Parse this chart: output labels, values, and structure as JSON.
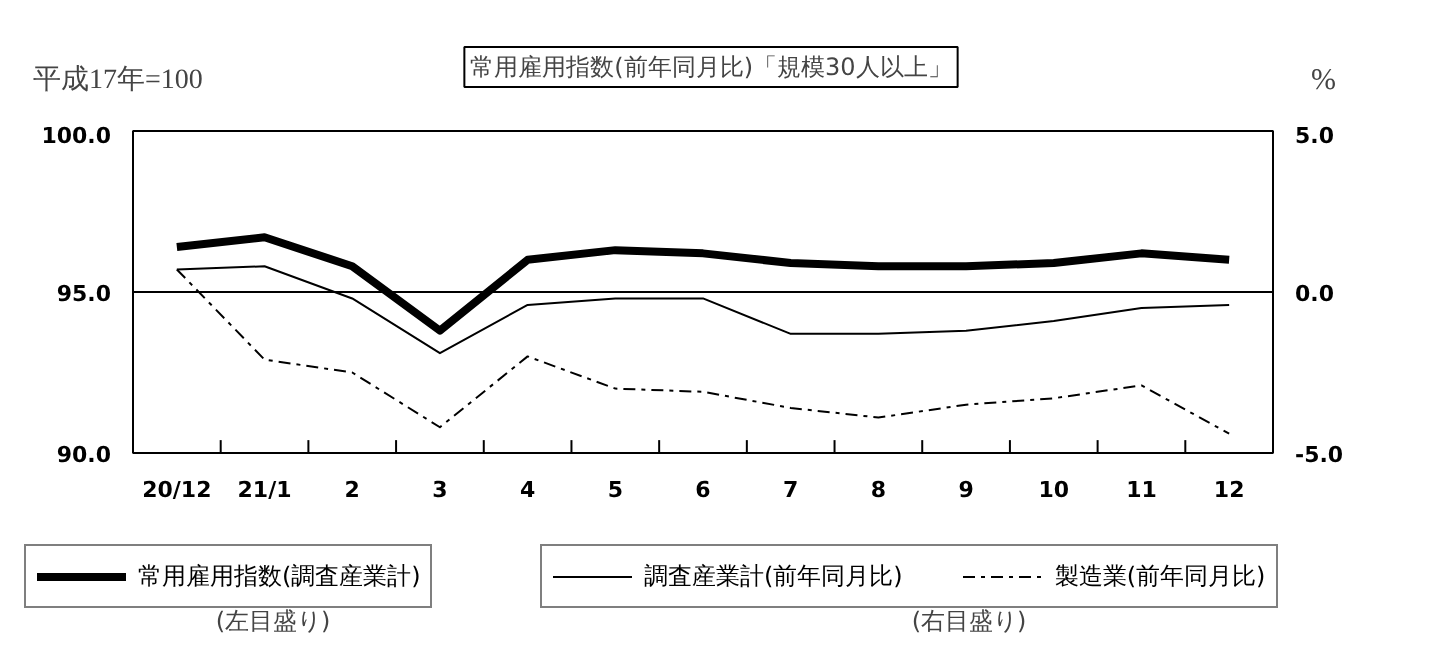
{
  "chart_data": {
    "type": "line",
    "title": "常用雇用指数(前年同月比)「規模30人以上」",
    "ylabel": "平成17年=100",
    "y2label": "%",
    "categories": [
      "20/12",
      "21/1",
      "2",
      "3",
      "4",
      "5",
      "6",
      "7",
      "8",
      "9",
      "10",
      "11",
      "12"
    ],
    "series": [
      {
        "name": "常用雇用指数(調査産業計)",
        "color": "#000000",
        "line_style": "solid",
        "values": [
          96.4,
          96.7,
          95.8,
          93.8,
          96.0,
          96.3,
          96.2,
          95.9,
          95.8,
          95.8,
          95.9,
          96.2,
          96.0
        ]
      },
      {
        "name": "調査産業計(前年同月比)",
        "color": "#000000",
        "line_style": "solid",
        "axis": "y2",
        "values": [
          0.7,
          0.8,
          -0.2,
          -1.9,
          -0.4,
          -0.2,
          -0.2,
          -1.3,
          -1.3,
          -1.2,
          -0.9,
          -0.5,
          -0.4
        ]
      },
      {
        "name": "製造業(前年同月比)",
        "color": "#000000",
        "line_style": "dashed",
        "axis": "y2",
        "values": [
          0.7,
          -2.1,
          -2.5,
          -4.2,
          -2.0,
          -3.0,
          -3.1,
          -3.6,
          -3.9,
          -3.5,
          -3.3,
          -2.9,
          -4.4
        ]
      }
    ],
    "ylim": [
      90,
      100
    ],
    "yticks": [
      {
        "value": 90,
        "label": "90.0"
      },
      {
        "value": 95,
        "label": "95.0"
      },
      {
        "value": 100,
        "label": "100.0"
      }
    ],
    "y2lim": [
      -5,
      5
    ],
    "y2ticks": [
      {
        "value": -5,
        "label": "-5.0"
      },
      {
        "value": 0,
        "label": "0.0"
      },
      {
        "value": 5,
        "label": "5.0"
      }
    ],
    "ref_lines": [
      {
        "axis": "y2",
        "value": 0,
        "color": "#000000"
      }
    ],
    "annotations": [
      "(左目盛り)",
      "(右目盛り)"
    ],
    "legend": "bottom",
    "grid": false,
    "marker": "none"
  }
}
